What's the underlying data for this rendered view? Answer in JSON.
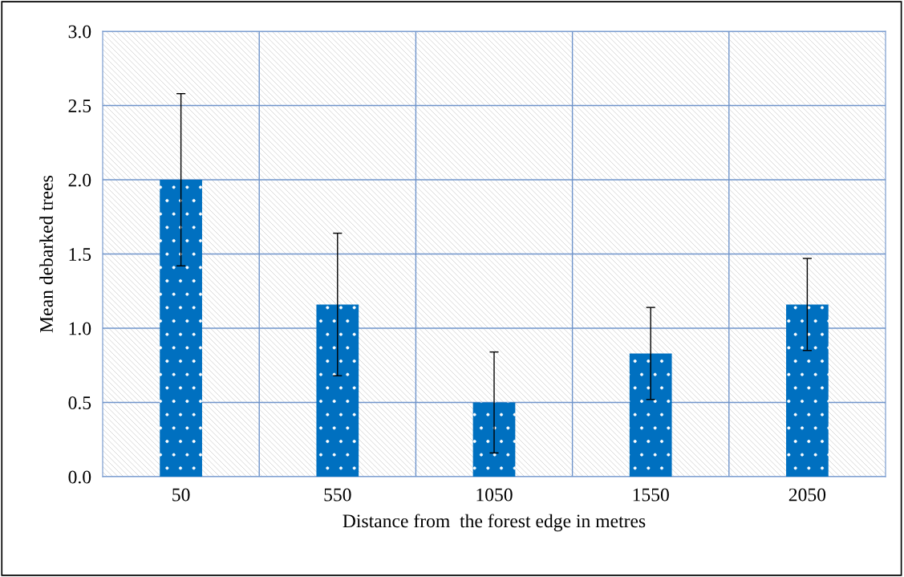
{
  "chart_data": {
    "type": "bar",
    "xlabel": "Distance from  the forest edge in metres",
    "ylabel": "Mean debarked trees",
    "categories": [
      "50",
      "550",
      "1050",
      "1550",
      "2050"
    ],
    "values": [
      2.0,
      1.16,
      0.5,
      0.83,
      1.16
    ],
    "errors": [
      0.58,
      0.48,
      0.34,
      0.31,
      0.31
    ],
    "color": "#0070c0",
    "ylim": [
      0,
      3.0
    ],
    "yticks": [
      {
        "value": 0,
        "label": "0.0"
      },
      {
        "value": 0.5,
        "label": "0.5"
      },
      {
        "value": 1.0,
        "label": "1.0"
      },
      {
        "value": 1.5,
        "label": "1.5"
      },
      {
        "value": 2.0,
        "label": "2.0"
      },
      {
        "value": 2.5,
        "label": "2.5"
      },
      {
        "value": 3.0,
        "label": "3.0"
      }
    ],
    "grid": true
  }
}
